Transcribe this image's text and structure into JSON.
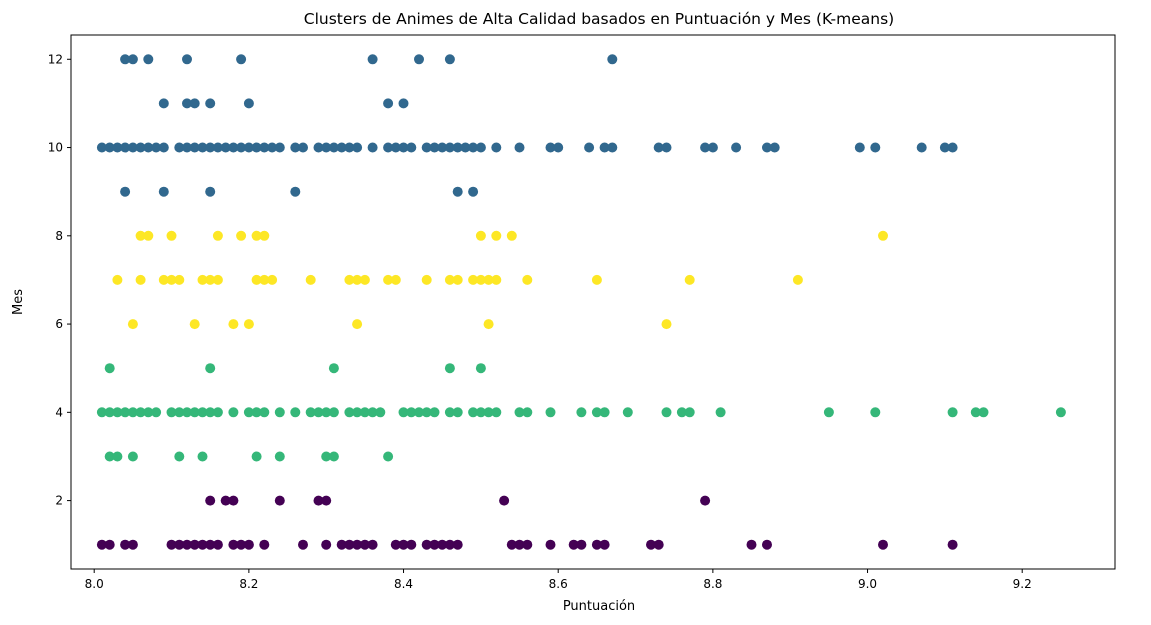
{
  "chart_data": {
    "type": "scatter",
    "title": "Clusters de Animes de Alta Calidad basados en Puntuación y Mes (K-means)",
    "xlabel": "Puntuación",
    "ylabel": "Mes",
    "xlim": [
      7.97,
      9.32
    ],
    "ylim": [
      0.45,
      12.55
    ],
    "xticks": [
      8.0,
      8.2,
      8.4,
      8.6,
      8.8,
      9.0,
      9.2
    ],
    "xtick_labels": [
      "8.0",
      "8.2",
      "8.4",
      "8.6",
      "8.8",
      "9.0",
      "9.2"
    ],
    "yticks": [
      2,
      4,
      6,
      8,
      10,
      12
    ],
    "ytick_labels": [
      "2",
      "4",
      "6",
      "8",
      "10",
      "12"
    ],
    "grid": false,
    "legend": "none",
    "series": [
      {
        "color": "#440154",
        "points": [
          [
            8.01,
            1
          ],
          [
            8.02,
            1
          ],
          [
            8.04,
            1
          ],
          [
            8.05,
            1
          ],
          [
            8.1,
            1
          ],
          [
            8.11,
            1
          ],
          [
            8.12,
            1
          ],
          [
            8.13,
            1
          ],
          [
            8.14,
            1
          ],
          [
            8.15,
            1
          ],
          [
            8.16,
            1
          ],
          [
            8.18,
            1
          ],
          [
            8.19,
            1
          ],
          [
            8.2,
            1
          ],
          [
            8.22,
            1
          ],
          [
            8.27,
            1
          ],
          [
            8.3,
            1
          ],
          [
            8.32,
            1
          ],
          [
            8.33,
            1
          ],
          [
            8.34,
            1
          ],
          [
            8.35,
            1
          ],
          [
            8.36,
            1
          ],
          [
            8.39,
            1
          ],
          [
            8.4,
            1
          ],
          [
            8.41,
            1
          ],
          [
            8.43,
            1
          ],
          [
            8.44,
            1
          ],
          [
            8.45,
            1
          ],
          [
            8.46,
            1
          ],
          [
            8.47,
            1
          ],
          [
            8.54,
            1
          ],
          [
            8.55,
            1
          ],
          [
            8.56,
            1
          ],
          [
            8.59,
            1
          ],
          [
            8.62,
            1
          ],
          [
            8.63,
            1
          ],
          [
            8.65,
            1
          ],
          [
            8.66,
            1
          ],
          [
            8.72,
            1
          ],
          [
            8.73,
            1
          ],
          [
            8.85,
            1
          ],
          [
            8.87,
            1
          ],
          [
            9.02,
            1
          ],
          [
            9.11,
            1
          ],
          [
            8.15,
            2
          ],
          [
            8.17,
            2
          ],
          [
            8.18,
            2
          ],
          [
            8.24,
            2
          ],
          [
            8.29,
            2
          ],
          [
            8.3,
            2
          ],
          [
            8.53,
            2
          ],
          [
            8.79,
            2
          ]
        ]
      },
      {
        "color": "#35b779",
        "points": [
          [
            8.02,
            3
          ],
          [
            8.03,
            3
          ],
          [
            8.05,
            3
          ],
          [
            8.11,
            3
          ],
          [
            8.14,
            3
          ],
          [
            8.21,
            3
          ],
          [
            8.24,
            3
          ],
          [
            8.3,
            3
          ],
          [
            8.31,
            3
          ],
          [
            8.38,
            3
          ],
          [
            8.01,
            4
          ],
          [
            8.02,
            4
          ],
          [
            8.03,
            4
          ],
          [
            8.04,
            4
          ],
          [
            8.05,
            4
          ],
          [
            8.06,
            4
          ],
          [
            8.07,
            4
          ],
          [
            8.08,
            4
          ],
          [
            8.1,
            4
          ],
          [
            8.11,
            4
          ],
          [
            8.12,
            4
          ],
          [
            8.13,
            4
          ],
          [
            8.14,
            4
          ],
          [
            8.15,
            4
          ],
          [
            8.16,
            4
          ],
          [
            8.18,
            4
          ],
          [
            8.2,
            4
          ],
          [
            8.21,
            4
          ],
          [
            8.22,
            4
          ],
          [
            8.24,
            4
          ],
          [
            8.26,
            4
          ],
          [
            8.28,
            4
          ],
          [
            8.29,
            4
          ],
          [
            8.3,
            4
          ],
          [
            8.31,
            4
          ],
          [
            8.33,
            4
          ],
          [
            8.34,
            4
          ],
          [
            8.35,
            4
          ],
          [
            8.36,
            4
          ],
          [
            8.37,
            4
          ],
          [
            8.4,
            4
          ],
          [
            8.41,
            4
          ],
          [
            8.42,
            4
          ],
          [
            8.43,
            4
          ],
          [
            8.44,
            4
          ],
          [
            8.46,
            4
          ],
          [
            8.47,
            4
          ],
          [
            8.49,
            4
          ],
          [
            8.5,
            4
          ],
          [
            8.51,
            4
          ],
          [
            8.52,
            4
          ],
          [
            8.55,
            4
          ],
          [
            8.56,
            4
          ],
          [
            8.59,
            4
          ],
          [
            8.63,
            4
          ],
          [
            8.65,
            4
          ],
          [
            8.66,
            4
          ],
          [
            8.69,
            4
          ],
          [
            8.74,
            4
          ],
          [
            8.76,
            4
          ],
          [
            8.77,
            4
          ],
          [
            8.81,
            4
          ],
          [
            8.95,
            4
          ],
          [
            9.01,
            4
          ],
          [
            9.11,
            4
          ],
          [
            9.14,
            4
          ],
          [
            9.15,
            4
          ],
          [
            9.25,
            4
          ],
          [
            8.02,
            5
          ],
          [
            8.15,
            5
          ],
          [
            8.31,
            5
          ],
          [
            8.46,
            5
          ],
          [
            8.5,
            5
          ]
        ]
      },
      {
        "color": "#fde725",
        "points": [
          [
            8.05,
            6
          ],
          [
            8.13,
            6
          ],
          [
            8.18,
            6
          ],
          [
            8.2,
            6
          ],
          [
            8.34,
            6
          ],
          [
            8.51,
            6
          ],
          [
            8.74,
            6
          ],
          [
            8.03,
            7
          ],
          [
            8.06,
            7
          ],
          [
            8.09,
            7
          ],
          [
            8.1,
            7
          ],
          [
            8.11,
            7
          ],
          [
            8.14,
            7
          ],
          [
            8.15,
            7
          ],
          [
            8.16,
            7
          ],
          [
            8.21,
            7
          ],
          [
            8.22,
            7
          ],
          [
            8.23,
            7
          ],
          [
            8.28,
            7
          ],
          [
            8.33,
            7
          ],
          [
            8.34,
            7
          ],
          [
            8.35,
            7
          ],
          [
            8.38,
            7
          ],
          [
            8.39,
            7
          ],
          [
            8.43,
            7
          ],
          [
            8.46,
            7
          ],
          [
            8.47,
            7
          ],
          [
            8.49,
            7
          ],
          [
            8.5,
            7
          ],
          [
            8.51,
            7
          ],
          [
            8.52,
            7
          ],
          [
            8.56,
            7
          ],
          [
            8.65,
            7
          ],
          [
            8.77,
            7
          ],
          [
            8.91,
            7
          ],
          [
            8.06,
            8
          ],
          [
            8.07,
            8
          ],
          [
            8.1,
            8
          ],
          [
            8.16,
            8
          ],
          [
            8.19,
            8
          ],
          [
            8.21,
            8
          ],
          [
            8.22,
            8
          ],
          [
            8.5,
            8
          ],
          [
            8.52,
            8
          ],
          [
            8.54,
            8
          ],
          [
            9.02,
            8
          ]
        ]
      },
      {
        "color": "#31688e",
        "points": [
          [
            8.04,
            9
          ],
          [
            8.09,
            9
          ],
          [
            8.15,
            9
          ],
          [
            8.26,
            9
          ],
          [
            8.47,
            9
          ],
          [
            8.49,
            9
          ],
          [
            8.01,
            10
          ],
          [
            8.02,
            10
          ],
          [
            8.03,
            10
          ],
          [
            8.04,
            10
          ],
          [
            8.05,
            10
          ],
          [
            8.06,
            10
          ],
          [
            8.07,
            10
          ],
          [
            8.08,
            10
          ],
          [
            8.09,
            10
          ],
          [
            8.11,
            10
          ],
          [
            8.12,
            10
          ],
          [
            8.13,
            10
          ],
          [
            8.14,
            10
          ],
          [
            8.15,
            10
          ],
          [
            8.16,
            10
          ],
          [
            8.17,
            10
          ],
          [
            8.18,
            10
          ],
          [
            8.19,
            10
          ],
          [
            8.2,
            10
          ],
          [
            8.21,
            10
          ],
          [
            8.22,
            10
          ],
          [
            8.23,
            10
          ],
          [
            8.24,
            10
          ],
          [
            8.26,
            10
          ],
          [
            8.27,
            10
          ],
          [
            8.29,
            10
          ],
          [
            8.3,
            10
          ],
          [
            8.31,
            10
          ],
          [
            8.32,
            10
          ],
          [
            8.33,
            10
          ],
          [
            8.34,
            10
          ],
          [
            8.36,
            10
          ],
          [
            8.38,
            10
          ],
          [
            8.39,
            10
          ],
          [
            8.4,
            10
          ],
          [
            8.41,
            10
          ],
          [
            8.43,
            10
          ],
          [
            8.44,
            10
          ],
          [
            8.45,
            10
          ],
          [
            8.46,
            10
          ],
          [
            8.47,
            10
          ],
          [
            8.48,
            10
          ],
          [
            8.49,
            10
          ],
          [
            8.5,
            10
          ],
          [
            8.52,
            10
          ],
          [
            8.55,
            10
          ],
          [
            8.59,
            10
          ],
          [
            8.6,
            10
          ],
          [
            8.64,
            10
          ],
          [
            8.66,
            10
          ],
          [
            8.67,
            10
          ],
          [
            8.73,
            10
          ],
          [
            8.74,
            10
          ],
          [
            8.79,
            10
          ],
          [
            8.8,
            10
          ],
          [
            8.83,
            10
          ],
          [
            8.87,
            10
          ],
          [
            8.88,
            10
          ],
          [
            8.99,
            10
          ],
          [
            9.01,
            10
          ],
          [
            9.07,
            10
          ],
          [
            9.1,
            10
          ],
          [
            9.11,
            10
          ],
          [
            8.09,
            11
          ],
          [
            8.12,
            11
          ],
          [
            8.13,
            11
          ],
          [
            8.15,
            11
          ],
          [
            8.2,
            11
          ],
          [
            8.38,
            11
          ],
          [
            8.4,
            11
          ],
          [
            8.04,
            12
          ],
          [
            8.05,
            12
          ],
          [
            8.07,
            12
          ],
          [
            8.12,
            12
          ],
          [
            8.19,
            12
          ],
          [
            8.36,
            12
          ],
          [
            8.42,
            12
          ],
          [
            8.46,
            12
          ],
          [
            8.67,
            12
          ]
        ]
      }
    ]
  }
}
